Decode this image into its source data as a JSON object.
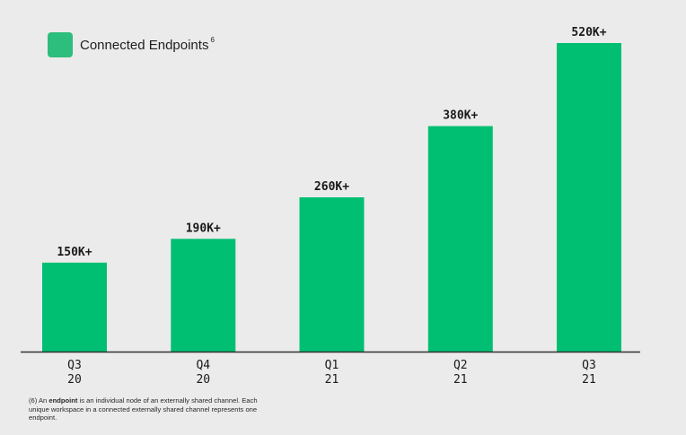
{
  "chart_data": {
    "type": "bar",
    "categories": [
      [
        "Q3",
        "20"
      ],
      [
        "Q4",
        "20"
      ],
      [
        "Q1",
        "21"
      ],
      [
        "Q2",
        "21"
      ],
      [
        "Q3",
        "21"
      ]
    ],
    "values": [
      150000,
      190000,
      260000,
      380000,
      520000
    ],
    "data_labels": [
      "150K+",
      "190K+",
      "260K+",
      "380K+",
      "520K+"
    ],
    "legend": {
      "label": "Connected Endpoints",
      "superscript": "6",
      "placement": "top-left"
    },
    "ylim": [
      0,
      520000
    ],
    "grid": false,
    "colors": {
      "bar": "#00bf73",
      "legend_swatch": "#2dbd7c",
      "axis": "#333333",
      "background": "#ebebeb"
    }
  },
  "footnote": {
    "marker": "(6) An ",
    "term": "endpoint",
    "text": " is an individual node of an externally shared channel. Each unique workspace in a connected externally shared channel represents one endpoint."
  }
}
